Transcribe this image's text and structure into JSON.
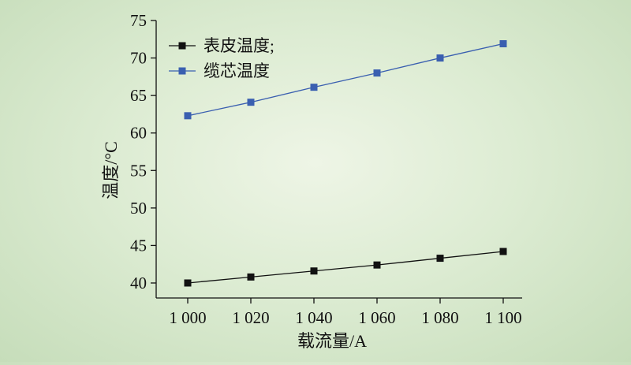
{
  "chart_data": {
    "type": "line",
    "xlabel": "载流量/A",
    "ylabel": "温度/°C",
    "x": [
      1000,
      1020,
      1040,
      1060,
      1080,
      1100
    ],
    "x_tick_labels": [
      "1 000",
      "1 020",
      "1 040",
      "1 060",
      "1 080",
      "1 100"
    ],
    "xlim": [
      990,
      1106
    ],
    "ylim": [
      38,
      75
    ],
    "y_ticks": [
      40,
      45,
      50,
      55,
      60,
      65,
      70,
      75
    ],
    "y_tick_labels": [
      "40",
      "45",
      "50",
      "55",
      "60",
      "65",
      "70",
      "75"
    ],
    "grid": false,
    "legend_position": "top-left",
    "series": [
      {
        "name": "表皮温度;",
        "color": "#111111",
        "marker": "square",
        "values": [
          40.0,
          40.8,
          41.6,
          42.4,
          43.3,
          44.2
        ]
      },
      {
        "name": "缆芯温度",
        "color": "#3a5fb0",
        "marker": "square",
        "values": [
          62.3,
          64.1,
          66.1,
          68.0,
          70.0,
          71.9
        ]
      }
    ]
  }
}
